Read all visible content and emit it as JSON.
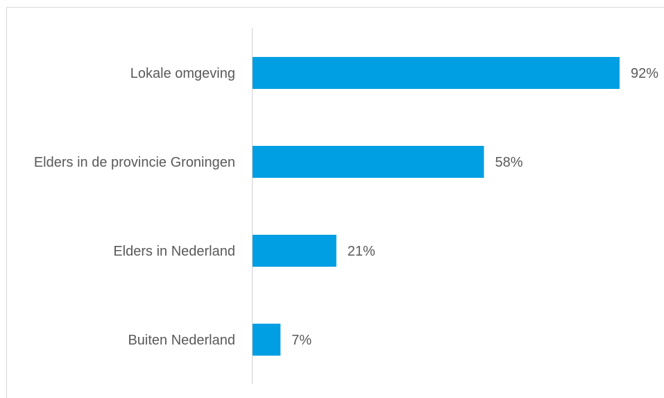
{
  "chart_data": {
    "type": "bar",
    "orientation": "horizontal",
    "categories": [
      "Lokale omgeving",
      "Elders in de provincie Groningen",
      "Elders in Nederland",
      "Buiten Nederland"
    ],
    "values": [
      92,
      58,
      21,
      7
    ],
    "value_labels": [
      "92%",
      "58%",
      "21%",
      "7%"
    ],
    "unit": "%",
    "xlim": [
      0,
      100
    ],
    "grid": false,
    "legend": "none",
    "bar_color": "#009fe3"
  }
}
